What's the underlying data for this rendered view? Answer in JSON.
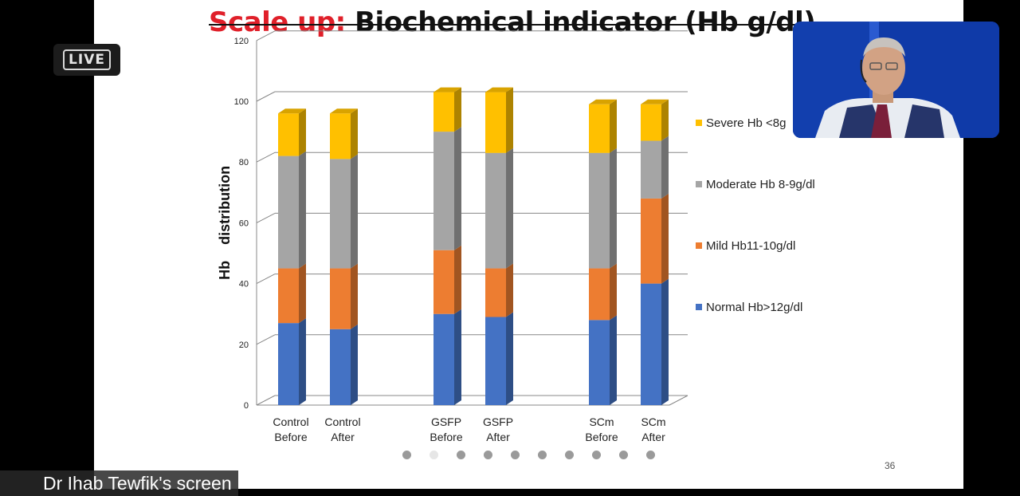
{
  "slide": {
    "title_red": "Scale up:",
    "title_black": "Biochemical indicator (Hb g/dl)",
    "slide_number": "36",
    "live_badge": "LIVE",
    "presenter_label": "Dr Ihab Tewfik's screen",
    "page_dots": 10,
    "active_dot": 2
  },
  "chart_data": {
    "type": "bar",
    "stacked": true,
    "style": "3d",
    "ylabel": "Hb    distribution",
    "xlabel": "",
    "ylim": [
      0,
      120
    ],
    "yticks": [
      0,
      20,
      40,
      60,
      80,
      100,
      120
    ],
    "grid": true,
    "legend_position": "right",
    "categories": [
      [
        "Control",
        "Before"
      ],
      [
        "Control",
        "After"
      ],
      [
        "GSFP",
        "Before"
      ],
      [
        "GSFP",
        "After"
      ],
      [
        "SCm",
        "Before"
      ],
      [
        "SCm",
        "After"
      ]
    ],
    "series": [
      {
        "name": "Normal Hb>12g/dl",
        "color": "#4472c4",
        "values": [
          27,
          25,
          30,
          29,
          28,
          40
        ]
      },
      {
        "name": "Mild Hb11-10g/dl",
        "color": "#ed7d31",
        "values": [
          18,
          20,
          21,
          16,
          17,
          28
        ]
      },
      {
        "name": "Moderate Hb 8-9g/dl",
        "color": "#a5a5a5",
        "values": [
          37,
          36,
          39,
          38,
          38,
          19
        ]
      },
      {
        "name": "Severe Hb <8g",
        "color": "#ffc000",
        "values": [
          14,
          15,
          13,
          20,
          16,
          12
        ]
      }
    ]
  }
}
